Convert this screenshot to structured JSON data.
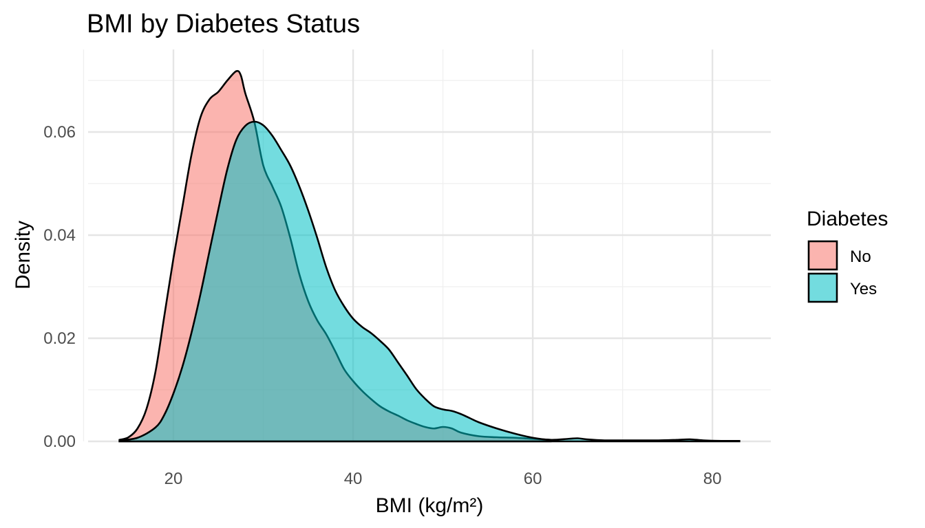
{
  "chart_data": {
    "type": "area",
    "title": "BMI by Diabetes Status",
    "xlabel": "BMI (kg/m²)",
    "ylabel": "Density",
    "xlim": [
      10.5,
      86.5
    ],
    "ylim": [
      0,
      0.076
    ],
    "x_ticks": [
      20,
      40,
      60,
      80
    ],
    "x_tick_labels": [
      "20",
      "40",
      "60",
      "80"
    ],
    "x_minor_ticks": [
      10,
      30,
      50,
      70
    ],
    "y_ticks": [
      0,
      0.02,
      0.04,
      0.06
    ],
    "y_tick_labels": [
      "0.00",
      "0.02",
      "0.04",
      "0.06"
    ],
    "y_minor_ticks": [
      0.01,
      0.03,
      0.05,
      0.07
    ],
    "grid": true,
    "legend": {
      "title": "Diabetes",
      "position": "right",
      "entries": [
        "No",
        "Yes"
      ]
    },
    "colors": {
      "No": "#f8766d",
      "Yes": "#00bfc4"
    },
    "fill_opacity": 0.55,
    "series": [
      {
        "name": "No",
        "x": [
          14,
          15,
          16,
          17,
          18,
          19,
          20,
          21,
          22,
          23,
          24,
          25,
          26,
          27,
          27.5,
          28,
          29,
          30,
          31,
          32,
          33,
          34,
          35,
          36,
          37,
          38,
          39,
          40,
          41,
          42,
          43,
          44,
          45,
          46,
          47,
          48,
          49,
          50,
          51,
          52,
          54,
          56,
          58,
          60,
          62
        ],
        "y": [
          0.0003,
          0.0008,
          0.0025,
          0.0063,
          0.0135,
          0.0245,
          0.0355,
          0.0455,
          0.0555,
          0.0628,
          0.0663,
          0.0678,
          0.07,
          0.0718,
          0.071,
          0.0675,
          0.062,
          0.0535,
          0.0495,
          0.0455,
          0.0395,
          0.0325,
          0.0272,
          0.0235,
          0.0208,
          0.0175,
          0.014,
          0.0117,
          0.0098,
          0.0082,
          0.0068,
          0.0058,
          0.005,
          0.0041,
          0.0034,
          0.0028,
          0.0025,
          0.0028,
          0.0025,
          0.0017,
          0.001,
          0.0008,
          0.0007,
          0.0005,
          0.0003
        ]
      },
      {
        "name": "Yes",
        "x": [
          14,
          16,
          18,
          19,
          20,
          21,
          22,
          23,
          24,
          25,
          26,
          27,
          28,
          29,
          30,
          31,
          32,
          33,
          34,
          35,
          36,
          37,
          38,
          39,
          40,
          41,
          42,
          43,
          44,
          45,
          46,
          47,
          48,
          49,
          50,
          51,
          52,
          53,
          54,
          56,
          58,
          60,
          62,
          64,
          65,
          66,
          68,
          70,
          72,
          74,
          76,
          77.5,
          79,
          81,
          83
        ],
        "y": [
          0.0002,
          0.0007,
          0.0027,
          0.0052,
          0.0093,
          0.0145,
          0.021,
          0.0285,
          0.0368,
          0.045,
          0.0528,
          0.0585,
          0.0612,
          0.062,
          0.0613,
          0.0593,
          0.0565,
          0.0535,
          0.0495,
          0.0448,
          0.0395,
          0.0338,
          0.0293,
          0.0262,
          0.0238,
          0.0222,
          0.021,
          0.0195,
          0.0178,
          0.0153,
          0.0128,
          0.0102,
          0.0083,
          0.0068,
          0.0062,
          0.0059,
          0.0053,
          0.0045,
          0.0037,
          0.0025,
          0.0015,
          0.0007,
          0.0003,
          0.0005,
          0.0006,
          0.0004,
          0.0002,
          0.0002,
          0.0002,
          0.0002,
          0.0003,
          0.0004,
          0.0002,
          0.0001,
          0.0001
        ]
      }
    ]
  }
}
